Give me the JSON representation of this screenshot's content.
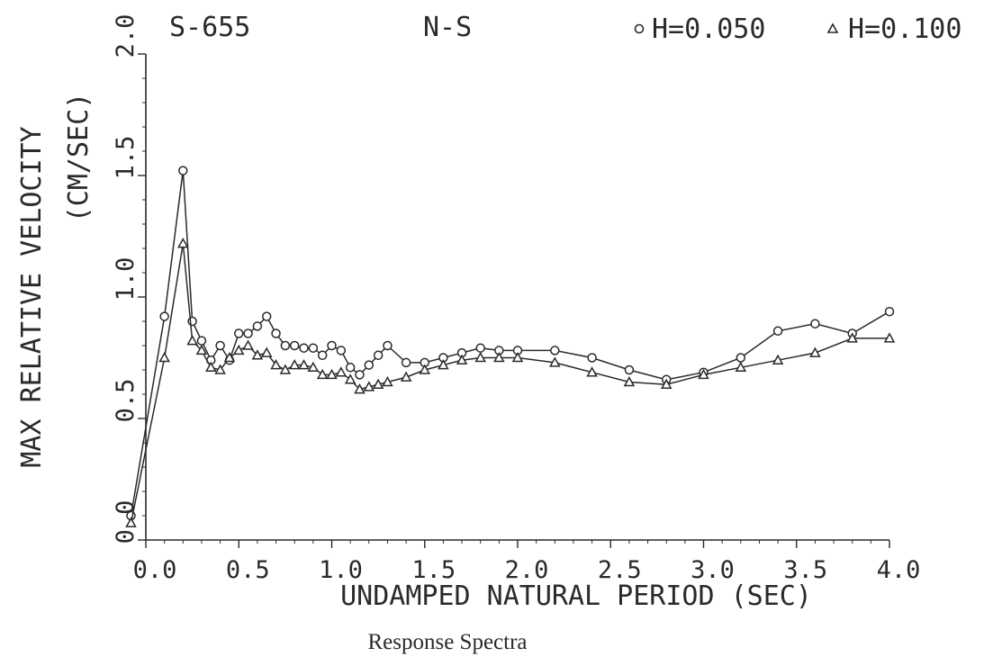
{
  "header": {
    "station": "S-655",
    "component": "N-S"
  },
  "caption": "Response Spectra",
  "chart_data": {
    "type": "line",
    "xlabel": "UNDAMPED NATURAL PERIOD (SEC)",
    "ylabel_line1": "MAX RELATIVE VELOCITY",
    "ylabel_line2": "(CM/SEC)",
    "xlim": [
      0.0,
      4.0
    ],
    "ylim": [
      0.0,
      2.0
    ],
    "x_ticks": [
      0.0,
      0.5,
      1.0,
      1.5,
      2.0,
      2.5,
      3.0,
      3.5,
      4.0
    ],
    "x_tick_labels": [
      "0.0",
      "0.5",
      "1.0",
      "1.5",
      "2.0",
      "2.5",
      "3.0",
      "3.5",
      "4.0"
    ],
    "y_ticks": [
      0.0,
      0.5,
      1.0,
      1.5,
      2.0
    ],
    "y_tick_labels": [
      "0.0",
      "0.5",
      "1.0",
      "1.5",
      "2.0"
    ],
    "grid": false,
    "legend_position": "top-right",
    "series": [
      {
        "name": "H=0.050",
        "marker": "circle",
        "color": "#2a2a2a",
        "x": [
          -0.08,
          0.1,
          0.2,
          0.25,
          0.3,
          0.35,
          0.4,
          0.45,
          0.5,
          0.55,
          0.6,
          0.65,
          0.7,
          0.75,
          0.8,
          0.85,
          0.9,
          0.95,
          1.0,
          1.05,
          1.1,
          1.15,
          1.2,
          1.25,
          1.3,
          1.4,
          1.5,
          1.6,
          1.7,
          1.8,
          1.9,
          2.0,
          2.2,
          2.4,
          2.6,
          2.8,
          3.0,
          3.2,
          3.4,
          3.6,
          3.8,
          4.0
        ],
        "y": [
          0.1,
          0.92,
          1.52,
          0.9,
          0.82,
          0.74,
          0.8,
          0.74,
          0.85,
          0.85,
          0.88,
          0.92,
          0.85,
          0.8,
          0.8,
          0.79,
          0.79,
          0.76,
          0.8,
          0.78,
          0.71,
          0.68,
          0.72,
          0.76,
          0.8,
          0.73,
          0.73,
          0.75,
          0.77,
          0.79,
          0.78,
          0.78,
          0.78,
          0.75,
          0.7,
          0.66,
          0.69,
          0.75,
          0.86,
          0.89,
          0.85,
          0.94
        ]
      },
      {
        "name": "H=0.100",
        "marker": "triangle",
        "color": "#2a2a2a",
        "x": [
          -0.08,
          0.1,
          0.2,
          0.25,
          0.3,
          0.35,
          0.4,
          0.45,
          0.5,
          0.55,
          0.6,
          0.65,
          0.7,
          0.75,
          0.8,
          0.85,
          0.9,
          0.95,
          1.0,
          1.05,
          1.1,
          1.15,
          1.2,
          1.25,
          1.3,
          1.4,
          1.5,
          1.6,
          1.7,
          1.8,
          1.9,
          2.0,
          2.2,
          2.4,
          2.6,
          2.8,
          3.0,
          3.2,
          3.4,
          3.6,
          3.8,
          4.0
        ],
        "y": [
          0.07,
          0.75,
          1.22,
          0.82,
          0.78,
          0.71,
          0.7,
          0.75,
          0.78,
          0.8,
          0.76,
          0.77,
          0.72,
          0.7,
          0.72,
          0.72,
          0.71,
          0.68,
          0.68,
          0.69,
          0.66,
          0.62,
          0.63,
          0.64,
          0.65,
          0.67,
          0.7,
          0.72,
          0.74,
          0.75,
          0.75,
          0.75,
          0.73,
          0.69,
          0.65,
          0.64,
          0.68,
          0.71,
          0.74,
          0.77,
          0.83,
          0.83
        ]
      }
    ]
  }
}
